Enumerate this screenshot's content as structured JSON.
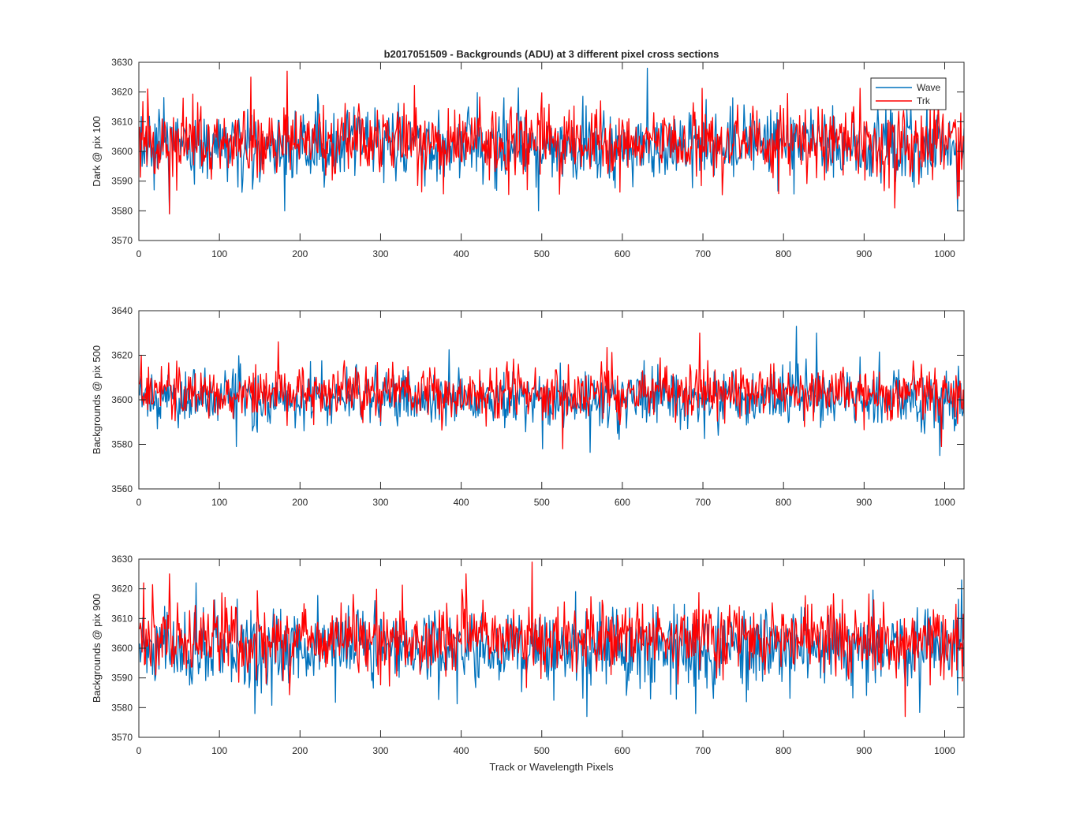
{
  "figure": {
    "title": "b2017051509 - Backgrounds (ADU) at 3 different pixel cross sections",
    "xlabel": "Track or Wavelength Pixels",
    "legend": {
      "placement": "top-right",
      "entries": [
        {
          "name": "Wave",
          "color": "#0072BD"
        },
        {
          "name": "Trk",
          "color": "#FF0000"
        }
      ]
    }
  },
  "chart_data": [
    {
      "type": "line",
      "ylabel": "Dark @ pix 100",
      "xlim": [
        0,
        1024
      ],
      "ylim": [
        3570,
        3630
      ],
      "xticks": [
        0,
        100,
        200,
        300,
        400,
        500,
        600,
        700,
        800,
        900,
        1000
      ],
      "yticks": [
        3570,
        3580,
        3590,
        3600,
        3610,
        3620,
        3630
      ],
      "grid": false,
      "n_points": 1024,
      "series": [
        {
          "name": "Wave",
          "color": "#0072BD",
          "mean": 3602,
          "noise_sd": 6,
          "extremes": [
            [
              630,
              3628
            ],
            [
              1015,
              3580
            ],
            [
              37,
              3579
            ],
            [
              495,
              3580
            ],
            [
              180,
              3580
            ]
          ]
        },
        {
          "name": "Trk",
          "color": "#FF0000",
          "mean": 3603,
          "noise_sd": 6,
          "extremes": [
            [
              183,
              3627
            ],
            [
              37,
              3579
            ],
            [
              10,
              3621
            ],
            [
              138,
              3625
            ],
            [
              1017,
              3585
            ]
          ]
        }
      ]
    },
    {
      "type": "line",
      "ylabel": "Backgrounds @ pix 500",
      "xlim": [
        0,
        1024
      ],
      "ylim": [
        3560,
        3640
      ],
      "xticks": [
        0,
        100,
        200,
        300,
        400,
        500,
        600,
        700,
        800,
        900,
        1000
      ],
      "yticks": [
        3560,
        3580,
        3600,
        3620,
        3640
      ],
      "grid": false,
      "n_points": 1024,
      "series": [
        {
          "name": "Wave",
          "color": "#0072BD",
          "mean": 3601,
          "noise_sd": 6.5,
          "extremes": [
            [
              815,
              3633
            ],
            [
              993,
              3575
            ],
            [
              120,
              3579
            ],
            [
              500,
              3578
            ],
            [
              840,
              3630
            ]
          ]
        },
        {
          "name": "Trk",
          "color": "#FF0000",
          "mean": 3603,
          "noise_sd": 6,
          "extremes": [
            [
              695,
              3630
            ],
            [
              172,
              3626
            ],
            [
              525,
              3578
            ],
            [
              995,
              3579
            ],
            [
              2,
              3620
            ]
          ]
        }
      ]
    },
    {
      "type": "line",
      "ylabel": "Backgrounds @ pix 900",
      "xlim": [
        0,
        1024
      ],
      "ylim": [
        3570,
        3630
      ],
      "xticks": [
        0,
        100,
        200,
        300,
        400,
        500,
        600,
        700,
        800,
        900,
        1000
      ],
      "yticks": [
        3570,
        3580,
        3590,
        3600,
        3610,
        3620,
        3630
      ],
      "grid": false,
      "n_points": 1024,
      "series": [
        {
          "name": "Wave",
          "color": "#0072BD",
          "mean": 3600,
          "noise_sd": 6.5,
          "extremes": [
            [
              143,
              3578
            ],
            [
              555,
              3577
            ],
            [
              1020,
              3623
            ],
            [
              690,
              3578
            ],
            [
              70,
              3622
            ]
          ]
        },
        {
          "name": "Trk",
          "color": "#FF0000",
          "mean": 3603,
          "noise_sd": 6,
          "extremes": [
            [
              487,
              3629
            ],
            [
              950,
              3577
            ],
            [
              37,
              3625
            ],
            [
              405,
              3625
            ],
            [
              5,
              3622
            ]
          ]
        }
      ]
    }
  ]
}
